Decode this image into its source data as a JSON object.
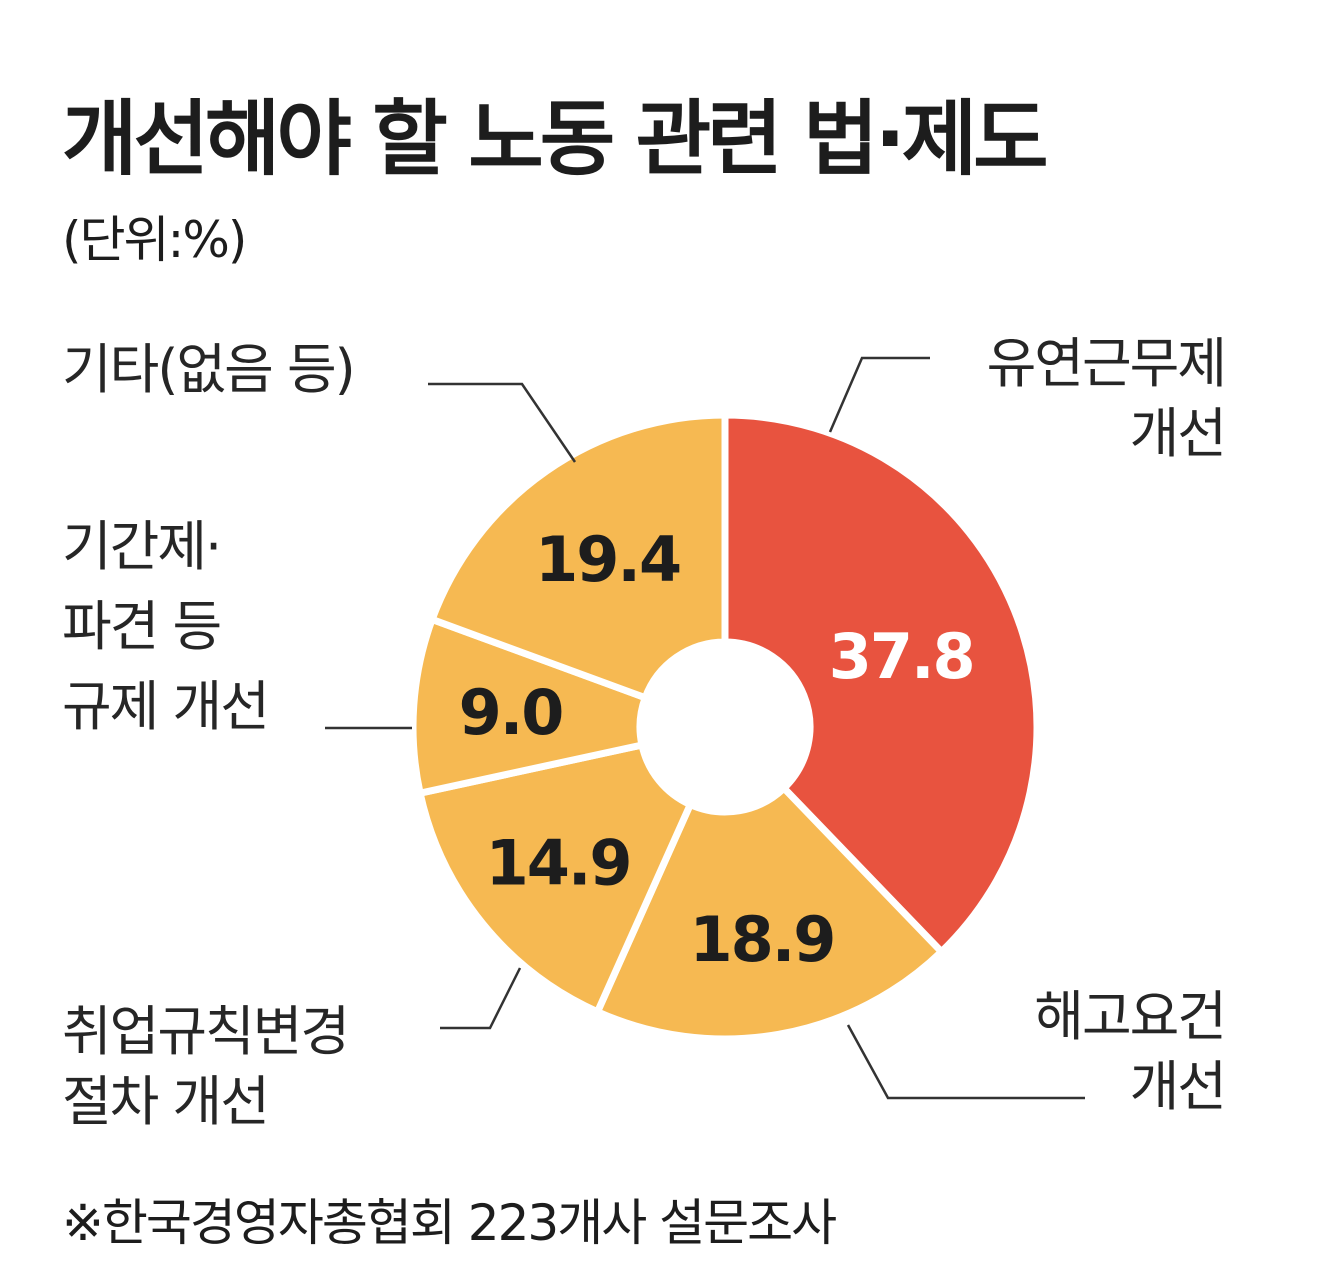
{
  "chart_data": {
    "type": "pie",
    "title": "개선해야 할 노동 관련 법·제도",
    "subtitle": "(단위:%)",
    "note": "※한국경영자총협회 223개사 설문조사",
    "slices": [
      {
        "label_lines": [
          "유연근무제",
          "개선"
        ],
        "value": 37.8,
        "display": "37.8",
        "color": "#e8533f",
        "value_color": "#ffffff"
      },
      {
        "label_lines": [
          "해고요건",
          "개선"
        ],
        "value": 18.9,
        "display": "18.9",
        "color": "#f6b952",
        "value_color": "#1d1d1d"
      },
      {
        "label_lines": [
          "취업규칙변경",
          "절차 개선"
        ],
        "value": 14.9,
        "display": "14.9",
        "color": "#f6b952",
        "value_color": "#1d1d1d"
      },
      {
        "label_lines": [
          "기간제·",
          "파견 등",
          "규제 개선"
        ],
        "value": 9.0,
        "display": "9.0",
        "color": "#f6b952",
        "value_color": "#1d1d1d"
      },
      {
        "label_lines": [
          "기타(없음 등)"
        ],
        "value": 19.4,
        "display": "19.4",
        "color": "#f6b952",
        "value_color": "#1d1d1d"
      }
    ]
  }
}
